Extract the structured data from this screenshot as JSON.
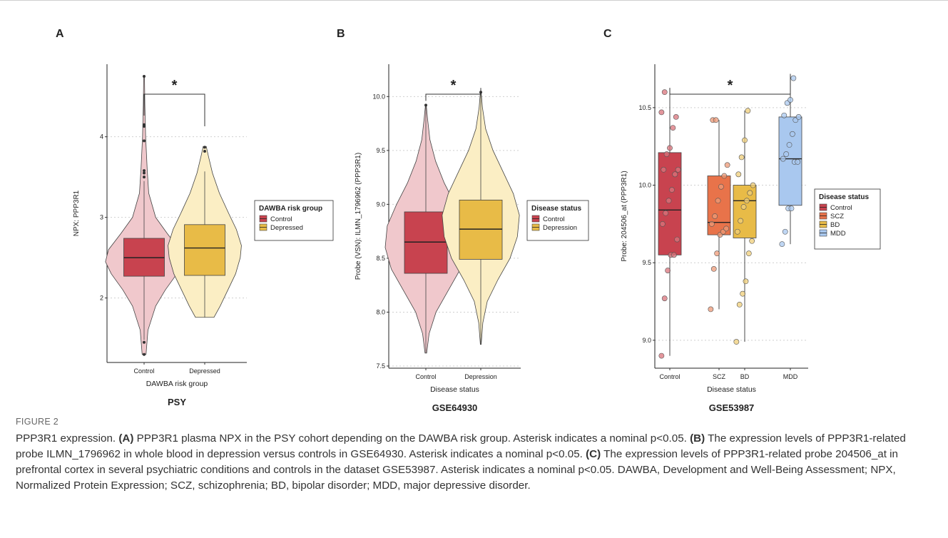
{
  "chart_data": [
    {
      "type": "violin",
      "panel_label": "A",
      "title": "PSY",
      "xlabel": "DAWBA risk group",
      "ylabel": "NPX: PPP3R1",
      "categories": [
        "Control",
        "Depressed"
      ],
      "ylim": [
        1.2,
        4.9
      ],
      "yticks": [
        2,
        3,
        4
      ],
      "ytick_labels": [
        "2",
        "3",
        "4"
      ],
      "grid": "horizontal-dotted",
      "significance": {
        "from": "Control",
        "to": "Depressed",
        "label": "*"
      },
      "legend": {
        "title": "DAWBA risk group",
        "entries": [
          "Control",
          "Depressed"
        ],
        "position": "right"
      },
      "series": [
        {
          "name": "Control",
          "violin_fill": "#f0c8cc",
          "box_fill": "#c8434f",
          "min": 1.3,
          "q1": 2.27,
          "median": 2.5,
          "q3": 2.74,
          "whisker_low": 1.48,
          "whisker_high": 3.45,
          "max": 4.75,
          "outliers": [
            1.3,
            1.45,
            3.5,
            3.55,
            3.58,
            3.95,
            4.13,
            4.15,
            4.75
          ],
          "density": [
            [
              1.3,
              0.05
            ],
            [
              1.6,
              0.1
            ],
            [
              1.9,
              0.3
            ],
            [
              2.1,
              0.55
            ],
            [
              2.3,
              0.85
            ],
            [
              2.45,
              1.0
            ],
            [
              2.6,
              0.92
            ],
            [
              2.8,
              0.6
            ],
            [
              3.0,
              0.3
            ],
            [
              3.3,
              0.12
            ],
            [
              3.6,
              0.08
            ],
            [
              4.0,
              0.04
            ],
            [
              4.4,
              0.02
            ],
            [
              4.75,
              0.01
            ]
          ]
        },
        {
          "name": "Depressed",
          "violin_fill": "#fbeec4",
          "box_fill": "#e8bb47",
          "min": 1.76,
          "q1": 2.28,
          "median": 2.62,
          "q3": 2.91,
          "whisker_low": 1.76,
          "whisker_high": 3.57,
          "max": 3.88,
          "outliers": [
            3.82,
            3.87
          ],
          "density": [
            [
              1.76,
              0.24
            ],
            [
              1.9,
              0.4
            ],
            [
              2.1,
              0.6
            ],
            [
              2.3,
              0.8
            ],
            [
              2.5,
              0.92
            ],
            [
              2.65,
              0.95
            ],
            [
              2.85,
              0.82
            ],
            [
              3.05,
              0.62
            ],
            [
              3.3,
              0.38
            ],
            [
              3.55,
              0.2
            ],
            [
              3.75,
              0.1
            ],
            [
              3.88,
              0.04
            ]
          ]
        }
      ]
    },
    {
      "type": "violin",
      "panel_label": "B",
      "title": "GSE64930",
      "xlabel": "Disease status",
      "ylabel": "Probe (VSN): ILMN_1796962 (PPP3R1)",
      "categories": [
        "Control",
        "Depression"
      ],
      "ylim": [
        7.48,
        10.3
      ],
      "yticks": [
        7.5,
        8.0,
        8.5,
        9.0,
        9.5,
        10.0
      ],
      "ytick_labels": [
        "7.5",
        "8.0",
        "8.5",
        "9.0",
        "9.5",
        "10.0"
      ],
      "grid": "horizontal-dotted",
      "significance": {
        "from": "Control",
        "to": "Depression",
        "label": "*"
      },
      "legend": {
        "title": "Disease status",
        "entries": [
          "Control",
          "Depression"
        ],
        "position": "right"
      },
      "series": [
        {
          "name": "Control",
          "violin_fill": "#f0c8cc",
          "box_fill": "#c8434f",
          "min": 7.62,
          "q1": 8.36,
          "median": 8.65,
          "q3": 8.93,
          "whisker_low": 7.62,
          "whisker_high": 9.92,
          "max": 9.92,
          "outliers": [
            9.92
          ],
          "density": [
            [
              7.62,
              0.02
            ],
            [
              7.8,
              0.08
            ],
            [
              8.0,
              0.25
            ],
            [
              8.2,
              0.55
            ],
            [
              8.4,
              0.85
            ],
            [
              8.6,
              1.0
            ],
            [
              8.8,
              0.95
            ],
            [
              9.0,
              0.72
            ],
            [
              9.2,
              0.45
            ],
            [
              9.4,
              0.24
            ],
            [
              9.6,
              0.1
            ],
            [
              9.8,
              0.04
            ],
            [
              9.92,
              0.01
            ]
          ]
        },
        {
          "name": "Depression",
          "violin_fill": "#fbeec4",
          "box_fill": "#e8bb47",
          "min": 7.7,
          "q1": 8.49,
          "median": 8.77,
          "q3": 9.04,
          "whisker_low": 7.7,
          "whisker_high": 10.04,
          "max": 10.04,
          "outliers": [
            10.04
          ],
          "density": [
            [
              7.7,
              0.01
            ],
            [
              7.9,
              0.05
            ],
            [
              8.1,
              0.16
            ],
            [
              8.3,
              0.42
            ],
            [
              8.5,
              0.72
            ],
            [
              8.7,
              0.9
            ],
            [
              8.9,
              0.95
            ],
            [
              9.1,
              0.8
            ],
            [
              9.3,
              0.55
            ],
            [
              9.5,
              0.3
            ],
            [
              9.7,
              0.12
            ],
            [
              9.9,
              0.04
            ],
            [
              10.04,
              0.01
            ]
          ]
        }
      ]
    },
    {
      "type": "box",
      "panel_label": "C",
      "title": "GSE53987",
      "xlabel": "Disease status",
      "ylabel": "Probe: 204506_at (PPP3R1)",
      "categories": [
        "Control",
        "SCZ",
        "BD",
        "MDD"
      ],
      "ylim": [
        8.82,
        10.78
      ],
      "yticks": [
        9.0,
        9.5,
        10.0,
        10.5
      ],
      "ytick_labels": [
        "9.0",
        "9.5",
        "10.0",
        "10.5"
      ],
      "grid": "horizontal-dotted",
      "significance": {
        "from": "Control",
        "to": "MDD",
        "label": "*"
      },
      "legend": {
        "title": "Disease status",
        "entries": [
          "Control",
          "SCZ",
          "BD",
          "MDD"
        ],
        "position": "right"
      },
      "series": [
        {
          "name": "Control",
          "box_fill": "#c8434f",
          "point_fill": "#d9737b",
          "q1": 9.55,
          "median": 9.84,
          "q3": 10.21,
          "whisker_low": 8.9,
          "whisker_high": 10.6,
          "points": [
            8.9,
            9.27,
            9.45,
            9.55,
            9.55,
            9.65,
            9.75,
            9.82,
            9.9,
            9.97,
            10.07,
            10.1,
            10.1,
            10.2,
            10.24,
            10.37,
            10.44,
            10.47,
            10.6
          ]
        },
        {
          "name": "SCZ",
          "box_fill": "#e8734a",
          "point_fill": "#ee9a77",
          "q1": 9.68,
          "median": 9.76,
          "q3": 10.06,
          "whisker_low": 9.2,
          "whisker_high": 10.42,
          "points": [
            9.2,
            9.46,
            9.56,
            9.68,
            9.7,
            9.72,
            9.75,
            9.8,
            9.9,
            9.99,
            10.06,
            10.13,
            10.42,
            10.42
          ]
        },
        {
          "name": "BD",
          "box_fill": "#e8bb47",
          "point_fill": "#efcd78",
          "q1": 9.66,
          "median": 9.9,
          "q3": 10.0,
          "whisker_low": 8.99,
          "whisker_high": 10.48,
          "points": [
            8.99,
            9.23,
            9.3,
            9.38,
            9.56,
            9.64,
            9.7,
            9.77,
            9.86,
            9.9,
            9.95,
            10.0,
            10.07,
            10.18,
            10.29,
            10.48
          ]
        },
        {
          "name": "MDD",
          "box_fill": "#a9c8ef",
          "point_fill": "#a9c8ef",
          "q1": 9.87,
          "median": 10.17,
          "q3": 10.44,
          "whisker_low": 9.62,
          "whisker_high": 10.69,
          "points": [
            9.62,
            9.7,
            9.85,
            9.85,
            10.15,
            10.15,
            10.17,
            10.2,
            10.26,
            10.33,
            10.42,
            10.44,
            10.45,
            10.53,
            10.55,
            10.69
          ]
        }
      ]
    }
  ],
  "caption": {
    "label": "FIGURE 2",
    "intro": "PPP3R1 expression. ",
    "a_label": "(A)",
    "a_text": " PPP3R1 plasma NPX in the PSY cohort depending on the DAWBA risk group. Asterisk indicates a nominal p<0.05. ",
    "b_label": "(B)",
    "b_text": " The expression levels of PPP3R1-related probe ILMN_1796962 in whole blood in depression versus controls in GSE64930. Asterisk indicates a nominal p<0.05. ",
    "c_label": "(C)",
    "c_text": " The expression levels of PPP3R1-related probe 204506_at in prefrontal cortex in several psychiatric conditions and controls in the dataset GSE53987. Asterisk indicates a nominal p<0.05. DAWBA, Development and Well-Being Assessment; NPX, Normalized Protein Expression; SCZ, schizophrenia; BD, bipolar disorder; MDD, major depressive disorder."
  }
}
